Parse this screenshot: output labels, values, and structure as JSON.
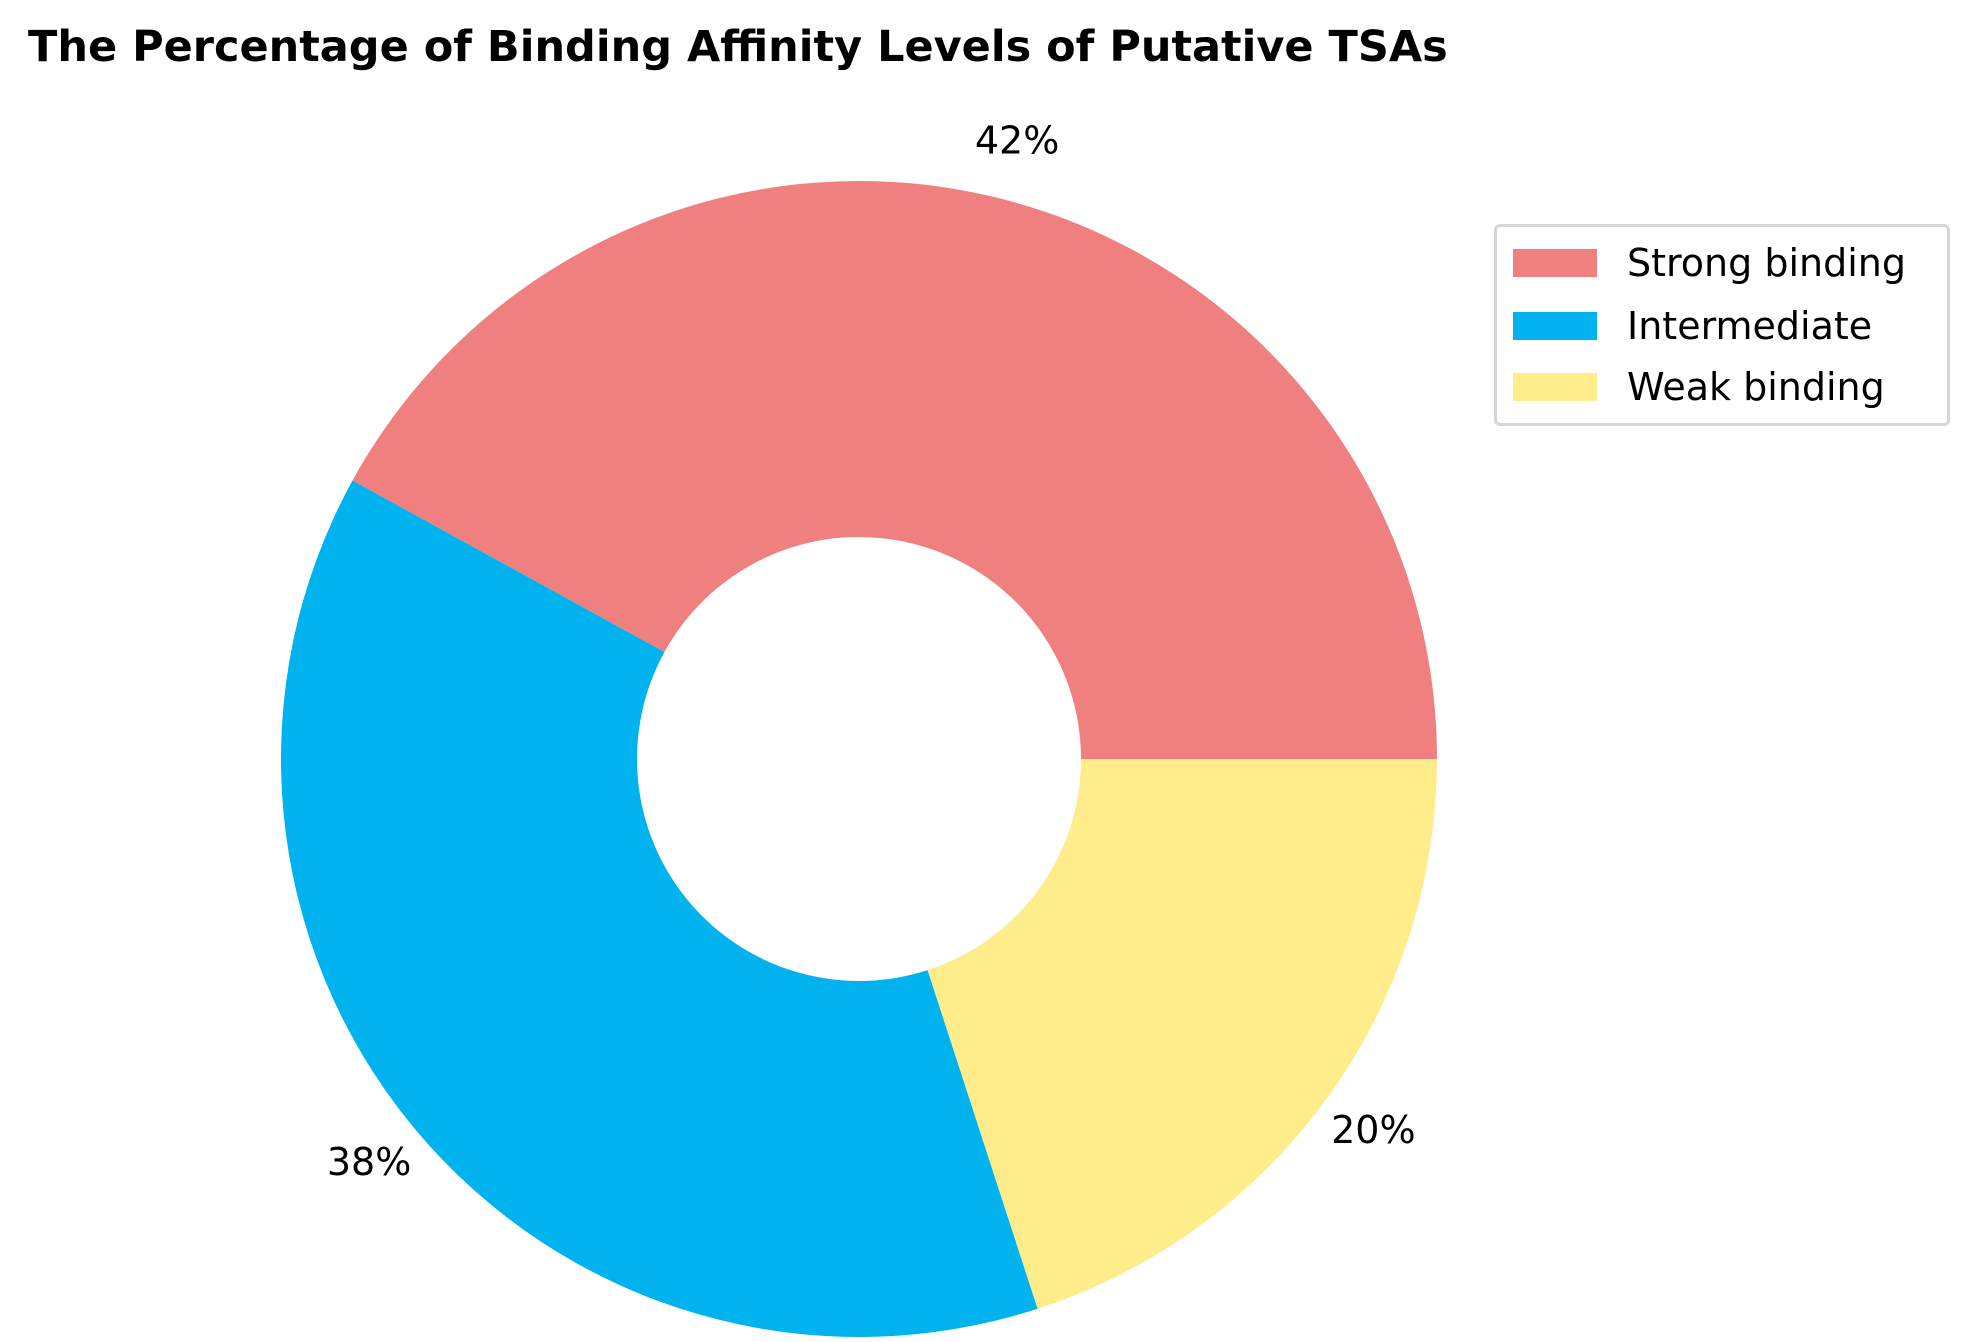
{
  "chart_data": {
    "type": "pie",
    "title": "The Percentage of Binding Affinity Levels of Putative TSAs",
    "categories": [
      "Strong binding",
      "Intermediate",
      "Weak binding"
    ],
    "values": [
      42,
      38,
      20
    ],
    "value_labels": [
      "42%",
      "38%",
      "20%"
    ],
    "colors": [
      "#f08080",
      "#00b2ee",
      "#ffec8b"
    ],
    "donut": true,
    "legend_position": "upper-right"
  }
}
